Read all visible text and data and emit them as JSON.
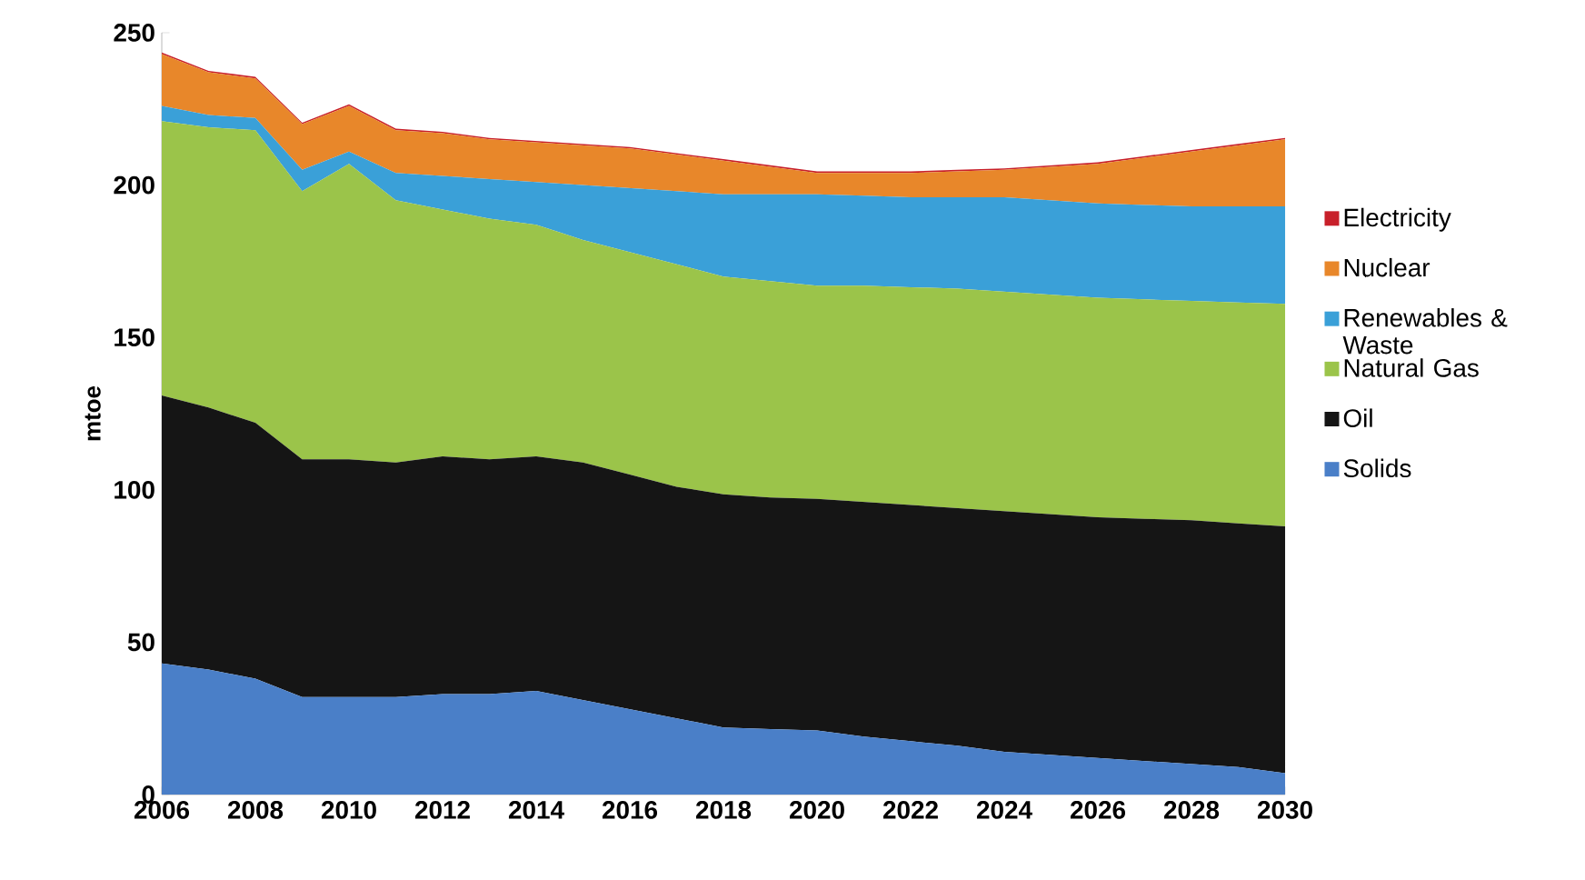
{
  "chart_data": {
    "type": "area",
    "stacked": true,
    "ylabel": "mtoe",
    "x": [
      2006,
      2007,
      2008,
      2009,
      2010,
      2011,
      2012,
      2013,
      2014,
      2015,
      2016,
      2017,
      2018,
      2019,
      2020,
      2021,
      2022,
      2023,
      2024,
      2025,
      2026,
      2027,
      2028,
      2029,
      2030
    ],
    "xlim": [
      2006,
      2030
    ],
    "xticks": [
      2006,
      2008,
      2010,
      2012,
      2014,
      2016,
      2018,
      2020,
      2022,
      2024,
      2026,
      2028,
      2030
    ],
    "ylim": [
      0,
      250
    ],
    "yticks": [
      0,
      50,
      100,
      150,
      200,
      250
    ],
    "legend": "right",
    "grid": false,
    "series": [
      {
        "name": "Solids",
        "color": "#4a7fc8",
        "values": [
          43,
          41,
          38,
          32,
          32,
          32,
          33,
          33,
          34,
          31,
          28,
          25,
          22,
          21.5,
          21,
          19,
          17.5,
          16,
          14,
          13,
          12,
          11,
          10,
          9,
          7
        ]
      },
      {
        "name": "Oil",
        "color": "#151515",
        "values": [
          88,
          86,
          84,
          78,
          78,
          77,
          78,
          77,
          77,
          78,
          77,
          76,
          76.5,
          76,
          76,
          77,
          77.5,
          78,
          79,
          79,
          79,
          79.5,
          80,
          80,
          81
        ]
      },
      {
        "name": "Natural Gas",
        "color": "#9bc44a",
        "values": [
          90,
          92,
          96,
          88,
          97,
          86,
          81,
          79,
          76,
          73,
          73,
          73,
          71.5,
          71,
          70,
          71,
          71.5,
          72,
          72,
          72,
          72,
          72,
          72,
          72.5,
          73
        ]
      },
      {
        "name": "Renewables & Waste",
        "color": "#3aa0d8",
        "values": [
          5,
          4,
          4,
          7,
          4,
          9,
          11,
          13,
          14,
          18,
          21,
          24,
          27,
          28.5,
          30,
          29.5,
          29.5,
          30,
          31,
          31,
          31,
          31,
          31,
          31.5,
          32
        ]
      },
      {
        "name": "Nuclear",
        "color": "#e8872a",
        "values": [
          17,
          14,
          13,
          15,
          15,
          14,
          14,
          13,
          13,
          13,
          13,
          12,
          11,
          9,
          7,
          7.5,
          8,
          8.5,
          9,
          11,
          13,
          15.5,
          18,
          20,
          22
        ]
      },
      {
        "name": "Electricity",
        "color": "#c8202a",
        "values": [
          0.5,
          0.5,
          0.5,
          0.5,
          0.5,
          0.5,
          0.5,
          0.5,
          0.5,
          0.5,
          0.5,
          0.5,
          0.5,
          0.5,
          0.5,
          0.5,
          0.5,
          0.5,
          0.5,
          0.5,
          0.5,
          0.5,
          0.5,
          0.5,
          0.5
        ]
      }
    ]
  }
}
